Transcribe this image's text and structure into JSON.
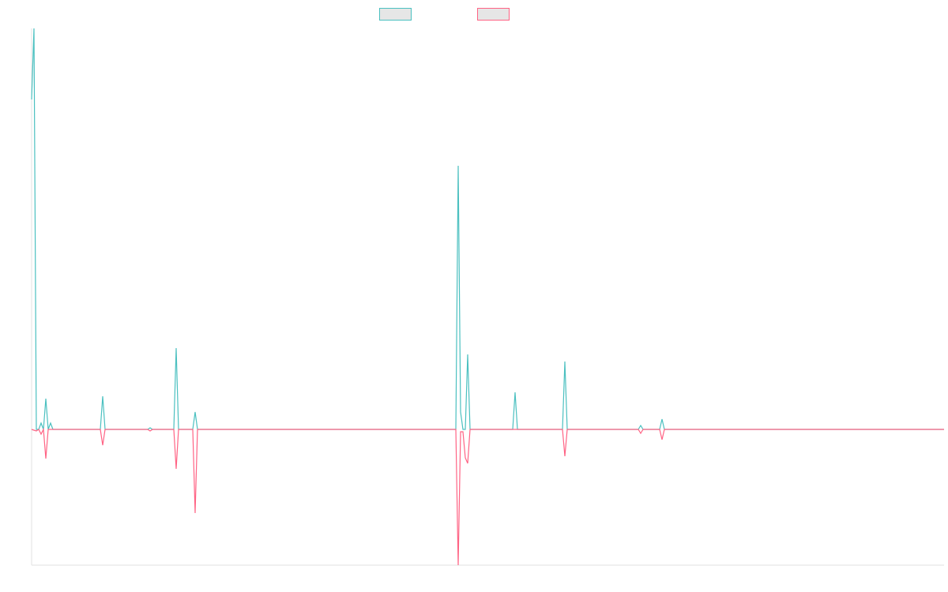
{
  "chart_data": {
    "type": "line",
    "x": [
      0,
      1,
      2,
      3,
      4,
      5,
      6,
      7,
      8,
      9,
      29,
      30,
      31,
      49,
      50,
      51,
      60,
      61,
      62,
      68,
      69,
      70,
      179,
      180,
      181,
      182,
      183,
      184,
      185,
      203,
      204,
      205,
      224,
      225,
      226,
      256,
      257,
      258,
      265,
      266,
      267,
      385
    ],
    "series": [
      {
        "color": "#4bc0c0",
        "values": [
          418,
          508,
          0,
          0,
          8,
          0,
          39,
          0,
          8,
          0,
          0,
          42,
          0,
          0,
          2,
          0,
          0,
          103,
          0,
          0,
          22,
          0,
          0,
          334,
          22,
          0,
          0,
          95,
          0,
          0,
          47,
          0,
          0,
          86,
          0,
          0,
          5,
          0,
          0,
          13,
          0,
          0
        ]
      },
      {
        "color": "#ff6384",
        "values": [
          0,
          -1,
          -2,
          0,
          -6,
          0,
          -37,
          0,
          0,
          0,
          0,
          -20,
          0,
          0,
          -2,
          0,
          0,
          -50,
          0,
          0,
          -106,
          0,
          0,
          -172,
          -3,
          -3,
          -36,
          -43,
          0,
          0,
          0,
          0,
          0,
          -34,
          0,
          0,
          -5,
          0,
          0,
          -13,
          0,
          0
        ]
      }
    ],
    "xlim": [
      0,
      385
    ],
    "ylim": [
      -172,
      508
    ],
    "grid": false
  }
}
